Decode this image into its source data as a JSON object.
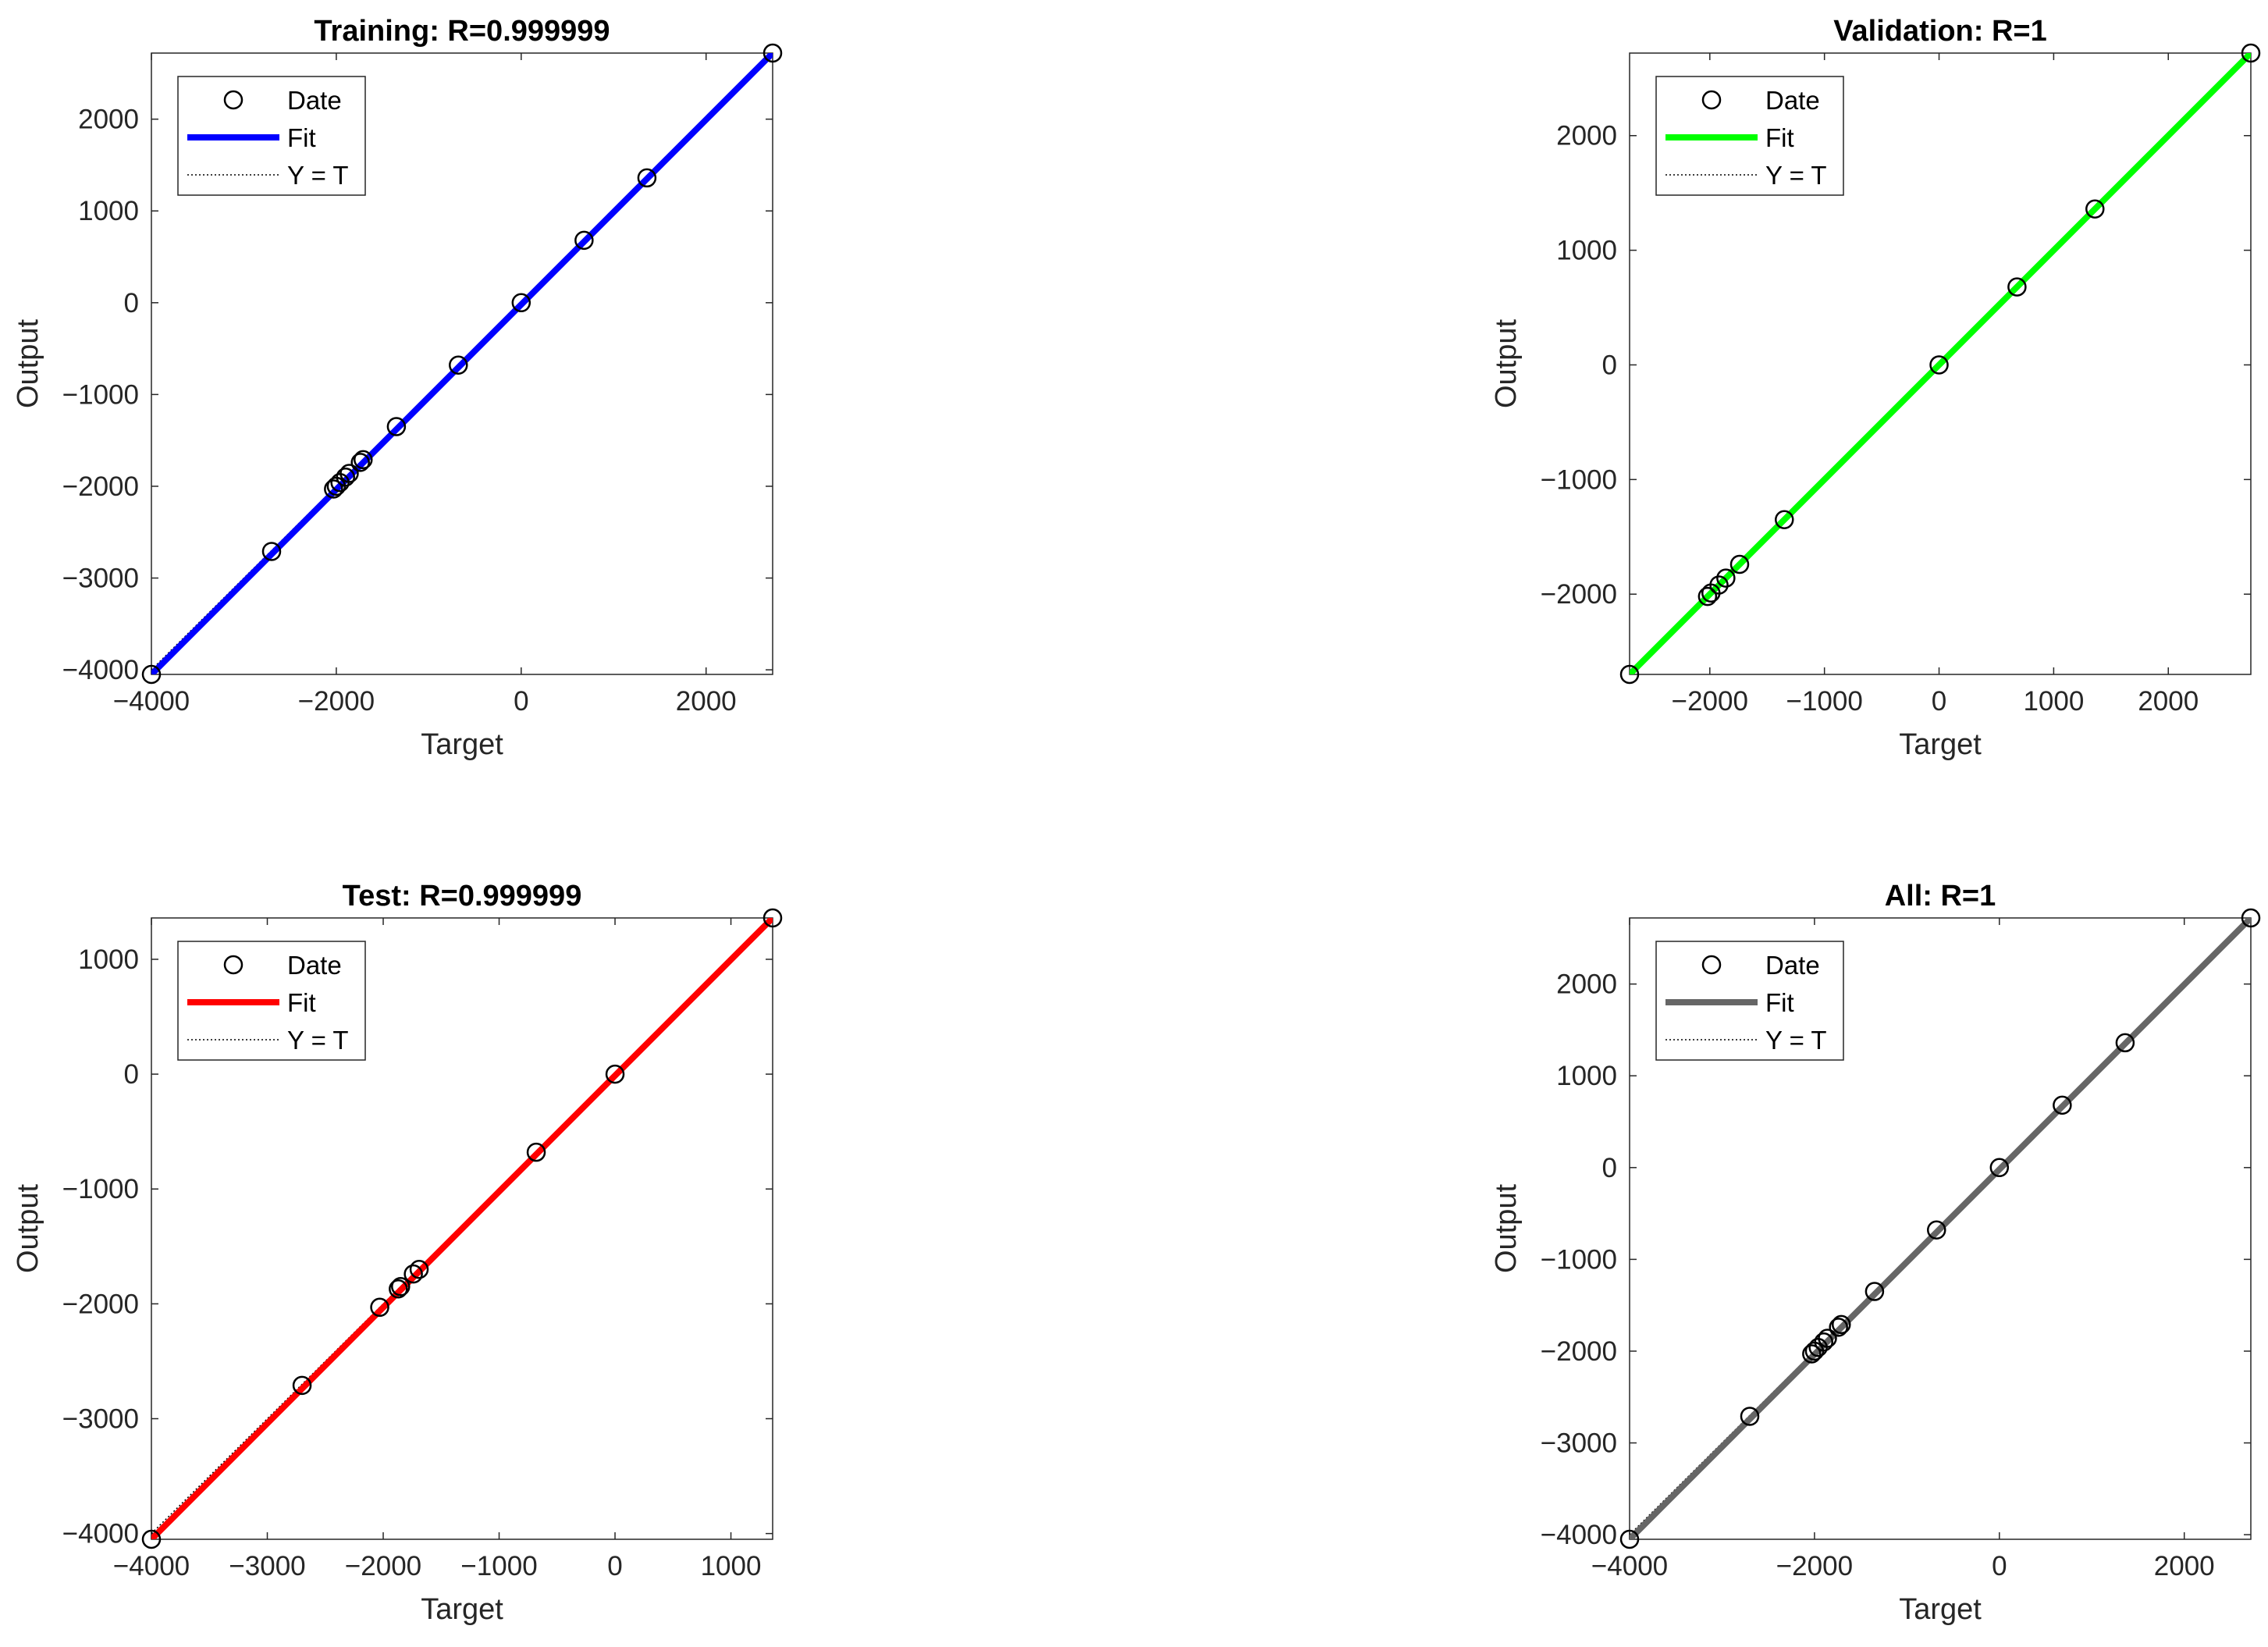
{
  "chart_data": [
    {
      "type": "scatter",
      "title": "Training: R=0.999999",
      "xlabel": "Target",
      "ylabel": "Output",
      "xlim": [
        -4000,
        2720
      ],
      "ylim": [
        -4050,
        2720
      ],
      "xticks": [
        -4000,
        -2000,
        0,
        2000
      ],
      "yticks": [
        -4000,
        -3000,
        -2000,
        -1000,
        0,
        1000,
        2000
      ],
      "fit_color": "#0000ff",
      "legend": [
        "Date",
        "Fit",
        "Y = T"
      ],
      "legend_position": "top-left",
      "grid": false,
      "fit": {
        "x": [
          -4000,
          2720
        ],
        "y": [
          -4050,
          2720
        ]
      },
      "points": {
        "x": [
          -4000,
          -2700,
          -2030,
          -2000,
          -1960,
          -1900,
          -1860,
          -1740,
          -1710,
          -1350,
          -680,
          0,
          680,
          1360,
          2720
        ],
        "y": [
          -4050,
          -2710,
          -2030,
          -2000,
          -1960,
          -1900,
          -1860,
          -1740,
          -1710,
          -1350,
          -680,
          0,
          680,
          1360,
          2720
        ]
      }
    },
    {
      "type": "scatter",
      "title": "Validation: R=1",
      "xlabel": "Target",
      "ylabel": "Output",
      "xlim": [
        -2700,
        2720
      ],
      "ylim": [
        -2700,
        2720
      ],
      "xticks": [
        -2000,
        -1000,
        0,
        1000,
        2000
      ],
      "yticks": [
        -2000,
        -1000,
        0,
        1000,
        2000
      ],
      "fit_color": "#00ff00",
      "legend": [
        "Date",
        "Fit",
        "Y = T"
      ],
      "legend_position": "top-left",
      "grid": false,
      "fit": {
        "x": [
          -2700,
          2720
        ],
        "y": [
          -2700,
          2720
        ]
      },
      "points": {
        "x": [
          -2700,
          -2020,
          -1990,
          -1920,
          -1860,
          -1740,
          -1350,
          0,
          680,
          1360,
          2720
        ],
        "y": [
          -2700,
          -2020,
          -1990,
          -1920,
          -1860,
          -1740,
          -1350,
          0,
          680,
          1360,
          2720
        ]
      }
    },
    {
      "type": "scatter",
      "title": "Test: R=0.999999",
      "xlabel": "Target",
      "ylabel": "Output",
      "xlim": [
        -4000,
        1360
      ],
      "ylim": [
        -4050,
        1360
      ],
      "xticks": [
        -4000,
        -3000,
        -2000,
        -1000,
        0,
        1000
      ],
      "yticks": [
        -4000,
        -3000,
        -2000,
        -1000,
        0,
        1000
      ],
      "fit_color": "#ff0000",
      "legend": [
        "Date",
        "Fit",
        "Y = T"
      ],
      "legend_position": "top-left",
      "grid": false,
      "fit": {
        "x": [
          -4000,
          1360
        ],
        "y": [
          -4050,
          1360
        ]
      },
      "points": {
        "x": [
          -4000,
          -2700,
          -2030,
          -1870,
          -1850,
          -1740,
          -1690,
          -680,
          0,
          1360
        ],
        "y": [
          -4050,
          -2710,
          -2030,
          -1870,
          -1850,
          -1740,
          -1700,
          -680,
          0,
          1360
        ]
      }
    },
    {
      "type": "scatter",
      "title": "All: R=1",
      "xlabel": "Target",
      "ylabel": "Output",
      "xlim": [
        -4000,
        2720
      ],
      "ylim": [
        -4050,
        2720
      ],
      "xticks": [
        -4000,
        -2000,
        0,
        2000
      ],
      "yticks": [
        -4000,
        -3000,
        -2000,
        -1000,
        0,
        1000,
        2000
      ],
      "fit_color": "#666666",
      "legend": [
        "Date",
        "Fit",
        "Y = T"
      ],
      "legend_position": "top-left",
      "grid": false,
      "fit": {
        "x": [
          -4000,
          2720
        ],
        "y": [
          -4050,
          2720
        ]
      },
      "points": {
        "x": [
          -4000,
          -2700,
          -2030,
          -2000,
          -1960,
          -1900,
          -1860,
          -1740,
          -1710,
          -1350,
          -680,
          0,
          680,
          1360,
          2720
        ],
        "y": [
          -4050,
          -2710,
          -2030,
          -2000,
          -1960,
          -1900,
          -1860,
          -1740,
          -1710,
          -1350,
          -680,
          0,
          680,
          1360,
          2720
        ]
      }
    }
  ]
}
